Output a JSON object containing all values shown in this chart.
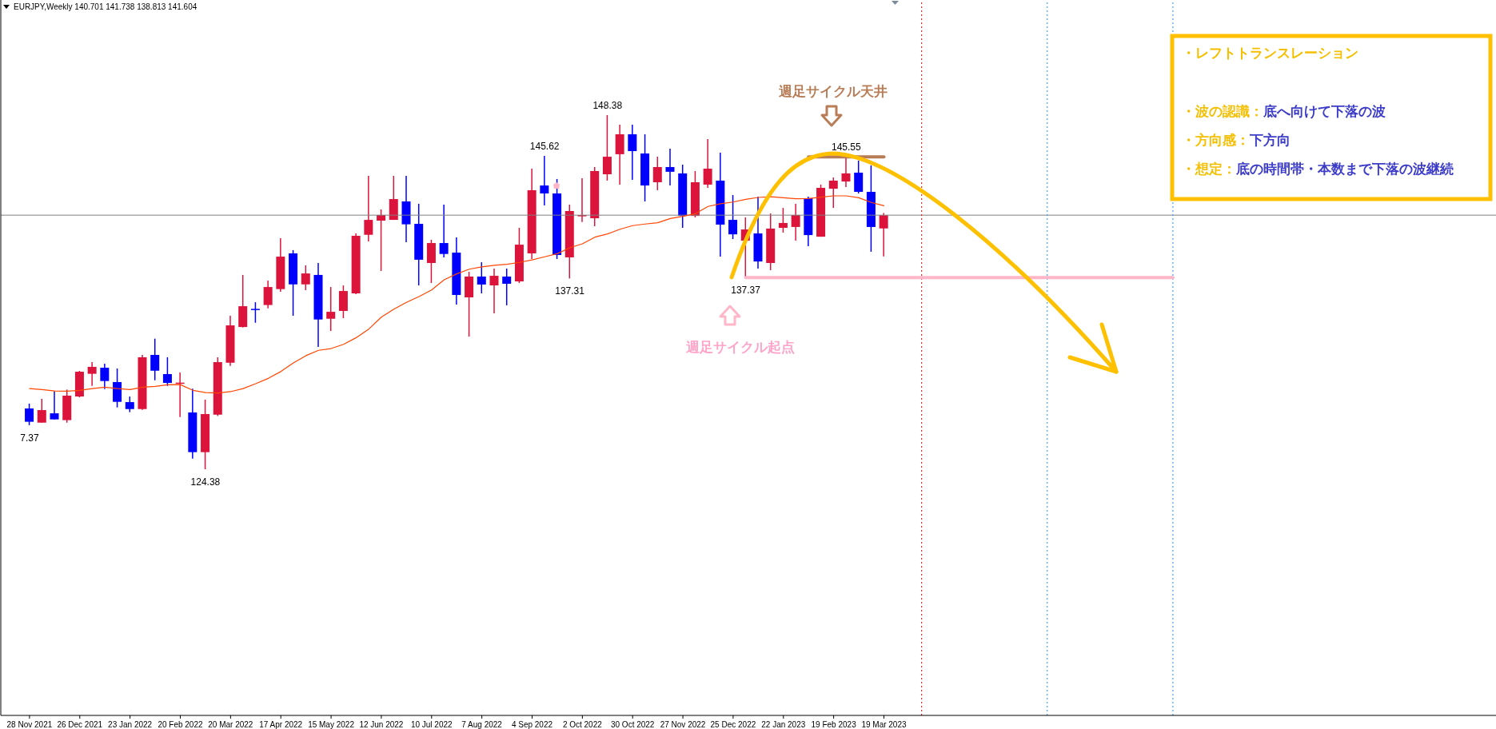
{
  "chart_data": {
    "type": "candlestick",
    "title": "EURJPY,Weekly  140.701 141.738 138.813 141.604",
    "x": [
      "2021-11-28",
      "2021-12-05",
      "2021-12-12",
      "2021-12-19",
      "2021-12-26",
      "2022-01-02",
      "2022-01-09",
      "2022-01-16",
      "2022-01-23",
      "2022-01-30",
      "2022-02-06",
      "2022-02-13",
      "2022-02-20",
      "2022-02-27",
      "2022-03-06",
      "2022-03-13",
      "2022-03-20",
      "2022-03-27",
      "2022-04-03",
      "2022-04-10",
      "2022-04-17",
      "2022-04-24",
      "2022-05-01",
      "2022-05-08",
      "2022-05-15",
      "2022-05-22",
      "2022-05-29",
      "2022-06-05",
      "2022-06-12",
      "2022-06-19",
      "2022-06-26",
      "2022-07-03",
      "2022-07-10",
      "2022-07-17",
      "2022-07-24",
      "2022-07-31",
      "2022-08-07",
      "2022-08-14",
      "2022-08-21",
      "2022-08-28",
      "2022-09-04",
      "2022-09-11",
      "2022-09-18",
      "2022-09-25",
      "2022-10-02",
      "2022-10-09",
      "2022-10-16",
      "2022-10-23",
      "2022-10-30",
      "2022-11-06",
      "2022-11-13",
      "2022-11-20",
      "2022-11-27",
      "2022-12-04",
      "2022-12-11",
      "2022-12-18",
      "2022-12-25",
      "2023-01-01",
      "2023-01-08",
      "2023-01-15",
      "2023-01-22",
      "2023-01-29",
      "2023-02-05",
      "2023-02-12",
      "2023-02-19",
      "2023-02-26",
      "2023-03-05",
      "2023-03-12",
      "2023-03-19"
    ],
    "ohlc": [
      [
        128.5,
        128.83,
        127.37,
        127.6
      ],
      [
        127.54,
        129.15,
        127.54,
        128.39
      ],
      [
        128.17,
        129.66,
        127.76,
        127.76
      ],
      [
        127.71,
        129.78,
        127.54,
        129.37
      ],
      [
        129.31,
        131.05,
        129.26,
        130.99
      ],
      [
        130.85,
        131.64,
        130.03,
        131.32
      ],
      [
        131.26,
        131.53,
        129.82,
        130.36
      ],
      [
        130.29,
        131.21,
        128.57,
        128.95
      ],
      [
        128.93,
        129.31,
        128.25,
        128.46
      ],
      [
        128.46,
        132.13,
        128.41,
        131.97
      ],
      [
        132.13,
        133.23,
        130.41,
        131.06
      ],
      [
        130.83,
        131.97,
        130.03,
        130.23
      ],
      [
        130.21,
        130.94,
        127.92,
        130.25
      ],
      [
        128.23,
        129.84,
        125.1,
        125.54
      ],
      [
        125.54,
        129.1,
        124.38,
        128.12
      ],
      [
        128.08,
        131.97,
        127.99,
        131.64
      ],
      [
        131.6,
        134.78,
        131.39,
        134.13
      ],
      [
        134.02,
        137.55,
        133.99,
        135.43
      ],
      [
        135.25,
        135.7,
        134.31,
        135.18
      ],
      [
        135.51,
        137.17,
        135.29,
        136.73
      ],
      [
        136.59,
        140.04,
        136.41,
        138.79
      ],
      [
        139.01,
        139.23,
        134.78,
        136.91
      ],
      [
        136.91,
        138.2,
        136.52,
        137.65
      ],
      [
        137.55,
        138.36,
        132.67,
        134.53
      ],
      [
        134.58,
        136.73,
        133.75,
        135.05
      ],
      [
        135.11,
        136.84,
        134.62,
        136.46
      ],
      [
        136.3,
        140.36,
        136.25,
        140.2
      ],
      [
        140.27,
        144.26,
        139.82,
        141.28
      ],
      [
        141.23,
        141.99,
        137.82,
        141.61
      ],
      [
        141.28,
        144.26,
        141.28,
        142.69
      ],
      [
        142.53,
        144.26,
        139.77,
        140.98
      ],
      [
        141.01,
        142.37,
        136.84,
        138.58
      ],
      [
        138.36,
        139.93,
        137.0,
        139.71
      ],
      [
        139.71,
        142.31,
        138.74,
        138.97
      ],
      [
        139.06,
        140.09,
        135.54,
        136.19
      ],
      [
        136.03,
        137.76,
        133.37,
        137.44
      ],
      [
        137.44,
        138.41,
        136.3,
        136.9
      ],
      [
        136.84,
        137.98,
        134.95,
        137.49
      ],
      [
        137.44,
        137.98,
        135.49,
        136.95
      ],
      [
        137.11,
        140.74,
        137.0,
        139.6
      ],
      [
        139.01,
        144.75,
        138.63,
        143.29
      ],
      [
        143.61,
        145.62,
        142.26,
        143.07
      ],
      [
        143.07,
        144.05,
        138.63,
        138.9
      ],
      [
        138.74,
        142.31,
        137.31,
        141.88
      ],
      [
        141.52,
        144.1,
        141.14,
        141.61
      ],
      [
        141.39,
        144.86,
        140.85,
        144.59
      ],
      [
        144.37,
        148.38,
        143.94,
        145.56
      ],
      [
        145.73,
        147.73,
        143.67,
        147.08
      ],
      [
        147.08,
        147.73,
        143.99,
        145.94
      ],
      [
        145.78,
        147.08,
        142.53,
        143.61
      ],
      [
        143.83,
        145.56,
        143.29,
        144.86
      ],
      [
        144.86,
        146.1,
        143.61,
        144.54
      ],
      [
        144.43,
        145.02,
        140.74,
        141.55
      ],
      [
        141.55,
        144.59,
        141.45,
        143.83
      ],
      [
        143.67,
        146.75,
        143.45,
        144.75
      ],
      [
        143.94,
        145.83,
        138.79,
        140.96
      ],
      [
        141.28,
        142.96,
        139.98,
        140.3
      ],
      [
        139.87,
        141.45,
        137.37,
        140.63
      ],
      [
        140.36,
        142.85,
        137.98,
        138.46
      ],
      [
        138.36,
        141.72,
        137.87,
        140.69
      ],
      [
        140.74,
        142.09,
        140.42,
        141.07
      ],
      [
        140.8,
        142.37,
        139.87,
        141.61
      ],
      [
        142.75,
        142.85,
        139.49,
        140.25
      ],
      [
        140.14,
        143.67,
        140.14,
        143.45
      ],
      [
        143.39,
        144.15,
        142.09,
        143.94
      ],
      [
        143.88,
        145.55,
        143.5,
        144.43
      ],
      [
        144.48,
        145.3,
        143.07,
        143.18
      ],
      [
        143.18,
        144.97,
        139.12,
        140.8
      ],
      [
        140.7,
        141.74,
        138.81,
        141.6
      ]
    ],
    "colors": [
      "#0000ff",
      "#dc143c",
      "#0000ff",
      "#dc143c",
      "#dc143c",
      "#dc143c",
      "#0000ff",
      "#0000ff",
      "#0000ff",
      "#dc143c",
      "#0000ff",
      "#0000ff",
      "#dc143c",
      "#0000ff",
      "#dc143c",
      "#dc143c",
      "#dc143c",
      "#dc143c",
      "#0000ff",
      "#dc143c",
      "#dc143c",
      "#0000ff",
      "#dc143c",
      "#0000ff",
      "#dc143c",
      "#dc143c",
      "#dc143c",
      "#dc143c",
      "#dc143c",
      "#dc143c",
      "#0000ff",
      "#0000ff",
      "#dc143c",
      "#0000ff",
      "#0000ff",
      "#dc143c",
      "#0000ff",
      "#dc143c",
      "#0000ff",
      "#dc143c",
      "#dc143c",
      "#0000ff",
      "#0000ff",
      "#dc143c",
      "#dc143c",
      "#dc143c",
      "#dc143c",
      "#dc143c",
      "#0000ff",
      "#0000ff",
      "#dc143c",
      "#0000ff",
      "#0000ff",
      "#dc143c",
      "#dc143c",
      "#0000ff",
      "#0000ff",
      "#dc143c",
      "#0000ff",
      "#dc143c",
      "#dc143c",
      "#dc143c",
      "#0000ff",
      "#dc143c",
      "#dc143c",
      "#dc143c",
      "#0000ff",
      "#0000ff",
      "#dc143c"
    ],
    "series": [
      {
        "type": "line",
        "color": "#ff4500",
        "values": [
          129.85,
          129.78,
          129.69,
          129.67,
          129.73,
          129.85,
          129.94,
          129.85,
          129.78,
          129.94,
          130.0,
          130.11,
          130.12,
          129.73,
          129.58,
          129.55,
          129.64,
          129.85,
          130.18,
          130.54,
          131.0,
          131.59,
          132.08,
          132.44,
          132.56,
          132.85,
          133.3,
          133.88,
          134.69,
          135.23,
          135.69,
          136.08,
          136.53,
          137.22,
          137.62,
          137.94,
          138.09,
          138.2,
          138.27,
          138.4,
          138.57,
          138.78,
          138.99,
          139.39,
          139.66,
          140.11,
          140.33,
          140.65,
          140.89,
          141.0,
          141.09,
          141.37,
          141.52,
          141.7,
          142.19,
          142.37,
          142.49,
          142.67,
          142.8,
          142.85,
          142.78,
          142.71,
          142.73,
          142.82,
          142.91,
          142.91,
          142.78,
          142.46,
          142.24
        ]
      },
      {
        "type": "line",
        "color": "#ffb6c8",
        "x": [
          "2023-01-01",
          "2023-08-27"
        ],
        "values": [
          137.37,
          137.37
        ]
      },
      {
        "type": "line",
        "color": "#b87d56",
        "x": [
          "2023-02-05",
          "2023-03-19"
        ],
        "values": [
          145.55,
          145.55
        ]
      }
    ],
    "ref_lines": [
      {
        "axis": "y",
        "value": 141.6,
        "color": "#808080",
        "line_style": "solid"
      },
      {
        "axis": "x",
        "value": "2023-04-09",
        "color": "#ff0000",
        "line_style": "dotted"
      },
      {
        "axis": "x",
        "value": "2023-06-18",
        "color": "#1e90ff",
        "line_style": "dotted"
      },
      {
        "axis": "x",
        "value": "2023-08-27",
        "color": "#1e90ff",
        "line_style": "dotted"
      }
    ],
    "annotations": [
      {
        "text": "7.37",
        "x": "2021-11-28",
        "y": 127.37
      },
      {
        "text": "124.38",
        "x": "2022-03-06",
        "y": 124.38
      },
      {
        "text": "145.62",
        "x": "2022-09-11",
        "y": 145.62
      },
      {
        "text": "137.31",
        "x": "2022-09-25",
        "y": 137.31
      },
      {
        "text": "148.38",
        "x": "2022-10-16",
        "y": 148.38
      },
      {
        "text": "137.37",
        "x": "2023-01-01",
        "y": 137.37
      },
      {
        "text": "145.55",
        "x": "2023-02-26",
        "y": 145.55
      },
      "週足サイクル天井",
      "週足サイクル起点",
      "・レフトトランスレーション",
      "・波の認識：底へ向けて下落の波",
      "・方向感：下方向",
      "・想定：底の時間帯・本数まで下落の波継続"
    ],
    "xlim": [
      "2021-11-12",
      "2024-02-23"
    ],
    "xticks": [
      {
        "value": "2021-11-28",
        "label": "28 Nov 2021"
      },
      {
        "value": "2021-12-26",
        "label": "26 Dec 2021"
      },
      {
        "value": "2022-01-23",
        "label": "23 Jan 2022"
      },
      {
        "value": "2022-02-20",
        "label": "20 Feb 2022"
      },
      {
        "value": "2022-03-20",
        "label": "20 Mar 2022"
      },
      {
        "value": "2022-04-17",
        "label": "17 Apr 2022"
      },
      {
        "value": "2022-05-15",
        "label": "15 May 2022"
      },
      {
        "value": "2022-06-12",
        "label": "12 Jun 2022"
      },
      {
        "value": "2022-07-10",
        "label": "10 Jul 2022"
      },
      {
        "value": "2022-08-07",
        "label": "7 Aug 2022"
      },
      {
        "value": "2022-09-04",
        "label": "4 Sep 2022"
      },
      {
        "value": "2022-10-02",
        "label": "2 Oct 2022"
      },
      {
        "value": "2022-10-30",
        "label": "30 Oct 2022"
      },
      {
        "value": "2022-11-27",
        "label": "27 Nov 2022"
      },
      {
        "value": "2022-12-25",
        "label": "25 Dec 2022"
      },
      {
        "value": "2023-01-22",
        "label": "22 Jan 2023"
      },
      {
        "value": "2023-02-19",
        "label": "19 Feb 2023"
      },
      {
        "value": "2023-03-19",
        "label": "19 Mar 2023"
      }
    ],
    "tick_labels": "x"
  }
}
